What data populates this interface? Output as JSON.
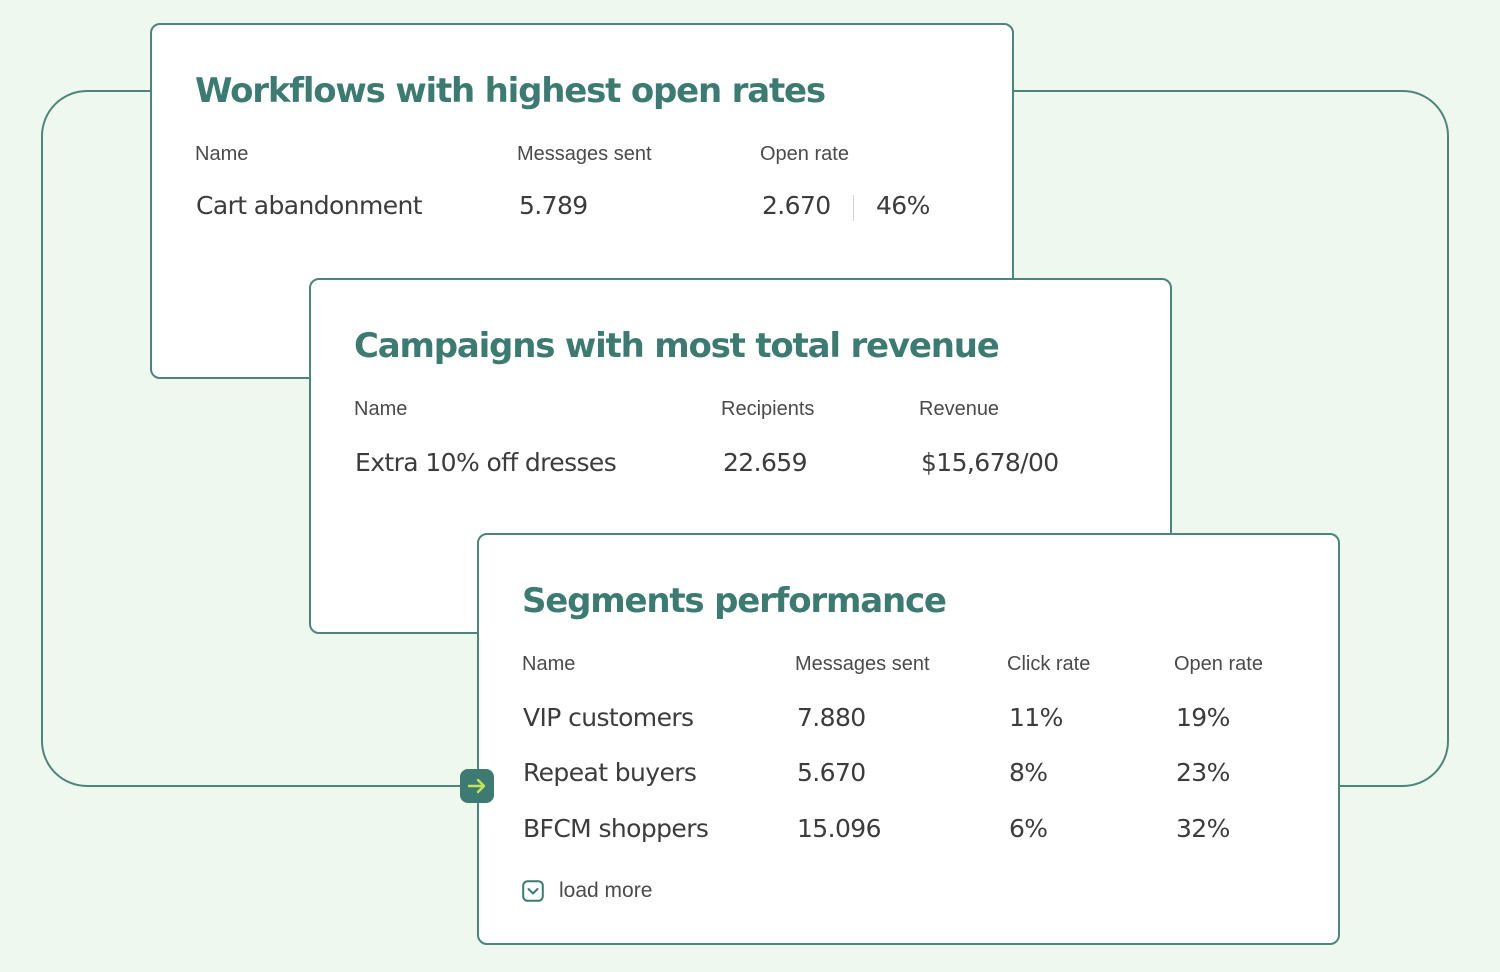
{
  "workflows": {
    "title": "Workflows with highest open rates",
    "columns": [
      "Name",
      "Messages sent",
      "Open rate"
    ],
    "row": {
      "name": "Cart abandonment",
      "messages_sent": "5.789",
      "opens": "2.670",
      "open_rate": "46%"
    }
  },
  "campaigns": {
    "title": "Campaigns with most total revenue",
    "columns": [
      "Name",
      "Recipients",
      "Revenue"
    ],
    "row": {
      "name": "Extra 10% off dresses",
      "recipients": "22.659",
      "revenue": "$15,678/00"
    }
  },
  "segments": {
    "title": "Segments performance",
    "columns": [
      "Name",
      "Messages sent",
      "Click rate",
      "Open rate"
    ],
    "rows": [
      {
        "name": "VIP customers",
        "messages_sent": "7.880",
        "click_rate": "11%",
        "open_rate": "19%"
      },
      {
        "name": "Repeat buyers",
        "messages_sent": "5.670",
        "click_rate": "8%",
        "open_rate": "23%"
      },
      {
        "name": "BFCM shoppers",
        "messages_sent": "15.096",
        "click_rate": "6%",
        "open_rate": "32%"
      }
    ],
    "load_more_label": "load more"
  },
  "icons": {
    "connector": "arrow-right-icon",
    "load_more": "chevron-down-icon"
  },
  "colors": {
    "background": "#eef8ee",
    "accent": "#3d7b72",
    "border": "#4d847c",
    "arrow": "#c4e35a",
    "text": "#3c3c3c"
  }
}
